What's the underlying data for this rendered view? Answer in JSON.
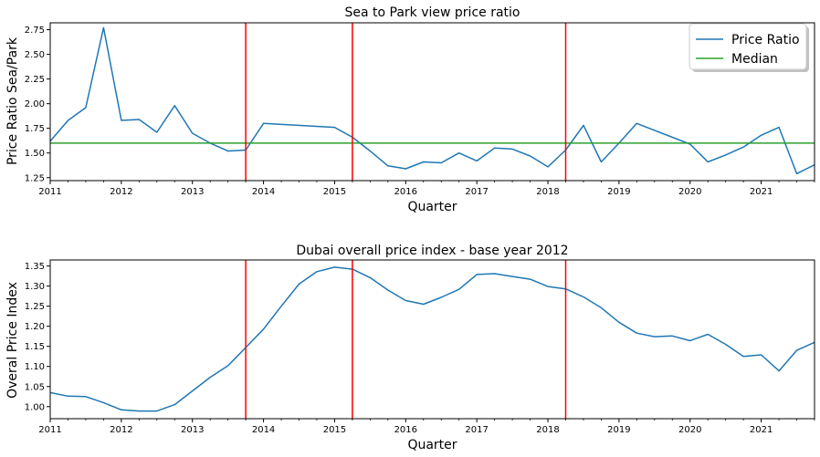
{
  "chart_data": [
    {
      "type": "line",
      "title": "Sea to Park view price ratio",
      "xlabel": "Quarter",
      "ylabel": "Price Ratio Sea/Park",
      "xlim": [
        2011.0,
        2021.75
      ],
      "ylim": [
        1.22,
        2.82
      ],
      "x_ticks": [
        "2011",
        "2012",
        "2013",
        "2014",
        "2015",
        "2016",
        "2017",
        "2018",
        "2019",
        "2020",
        "2021"
      ],
      "y_ticks": [
        "1.25",
        "1.50",
        "1.75",
        "2.00",
        "2.25",
        "2.50",
        "2.75"
      ],
      "y_tick_values": [
        1.25,
        1.5,
        1.75,
        2.0,
        2.25,
        2.5,
        2.75
      ],
      "series": [
        {
          "name": "Price Ratio",
          "color": "#1f77b4",
          "x": [
            2011.0,
            2011.25,
            2011.5,
            2011.75,
            2012.0,
            2012.25,
            2012.5,
            2012.75,
            2013.0,
            2013.25,
            2013.5,
            2013.75,
            2014.0,
            2015.0,
            2015.25,
            2015.5,
            2015.75,
            2016.0,
            2016.25,
            2016.5,
            2016.75,
            2017.0,
            2017.25,
            2017.5,
            2017.75,
            2018.0,
            2018.25,
            2018.5,
            2018.75,
            2019.0,
            2019.25,
            2020.0,
            2020.25,
            2020.5,
            2020.75,
            2021.0,
            2021.25,
            2021.5,
            2021.75
          ],
          "values": [
            1.62,
            1.83,
            1.96,
            2.77,
            1.83,
            1.84,
            1.71,
            1.98,
            1.7,
            1.6,
            1.52,
            1.53,
            1.8,
            1.76,
            1.66,
            1.52,
            1.37,
            1.34,
            1.41,
            1.4,
            1.5,
            1.42,
            1.55,
            1.54,
            1.47,
            1.36,
            1.53,
            1.78,
            1.41,
            1.6,
            1.8,
            1.59,
            1.41,
            1.48,
            1.56,
            1.68,
            1.76,
            1.29,
            1.38
          ]
        },
        {
          "name": "Median",
          "color": "#2ca02c",
          "type": "hline",
          "value": 1.6
        }
      ],
      "vlines": [
        2013.75,
        2015.25,
        2018.25
      ],
      "vline_color": "#ff0000",
      "legend": "top-right"
    },
    {
      "type": "line",
      "title": "Dubai overall price index - base year 2012",
      "xlabel": "Quarter",
      "ylabel": "Overal Price Index",
      "xlim": [
        2011.0,
        2021.75
      ],
      "ylim": [
        0.97,
        1.365
      ],
      "x_ticks": [
        "2011",
        "2012",
        "2013",
        "2014",
        "2015",
        "2016",
        "2017",
        "2018",
        "2019",
        "2020",
        "2021"
      ],
      "y_ticks": [
        "1.00",
        "1.05",
        "1.10",
        "1.15",
        "1.20",
        "1.25",
        "1.30",
        "1.35"
      ],
      "y_tick_values": [
        1.0,
        1.05,
        1.1,
        1.15,
        1.2,
        1.25,
        1.3,
        1.35
      ],
      "series": [
        {
          "name": "",
          "color": "#1f77b4",
          "x": [
            2011.0,
            2011.25,
            2011.5,
            2011.75,
            2012.0,
            2012.25,
            2012.5,
            2012.75,
            2013.0,
            2013.25,
            2013.5,
            2013.75,
            2014.0,
            2014.25,
            2014.5,
            2014.75,
            2015.0,
            2015.25,
            2015.5,
            2015.75,
            2016.0,
            2016.25,
            2016.5,
            2016.75,
            2017.0,
            2017.25,
            2017.5,
            2017.75,
            2018.0,
            2018.25,
            2018.5,
            2018.75,
            2019.0,
            2019.25,
            2019.5,
            2019.75,
            2020.0,
            2020.25,
            2020.5,
            2020.75,
            2021.0,
            2021.25,
            2021.5,
            2021.75
          ],
          "values": [
            1.035,
            1.026,
            1.025,
            1.01,
            0.992,
            0.989,
            0.989,
            1.005,
            1.039,
            1.073,
            1.102,
            1.147,
            1.193,
            1.25,
            1.305,
            1.336,
            1.347,
            1.342,
            1.321,
            1.29,
            1.264,
            1.255,
            1.272,
            1.292,
            1.329,
            1.331,
            1.324,
            1.317,
            1.299,
            1.293,
            1.273,
            1.246,
            1.21,
            1.183,
            1.174,
            1.176,
            1.164,
            1.18,
            1.155,
            1.125,
            1.129,
            1.089,
            1.14,
            1.16
          ]
        }
      ],
      "vlines": [
        2013.75,
        2015.25,
        2018.25
      ],
      "vline_color": "#ff0000"
    }
  ]
}
